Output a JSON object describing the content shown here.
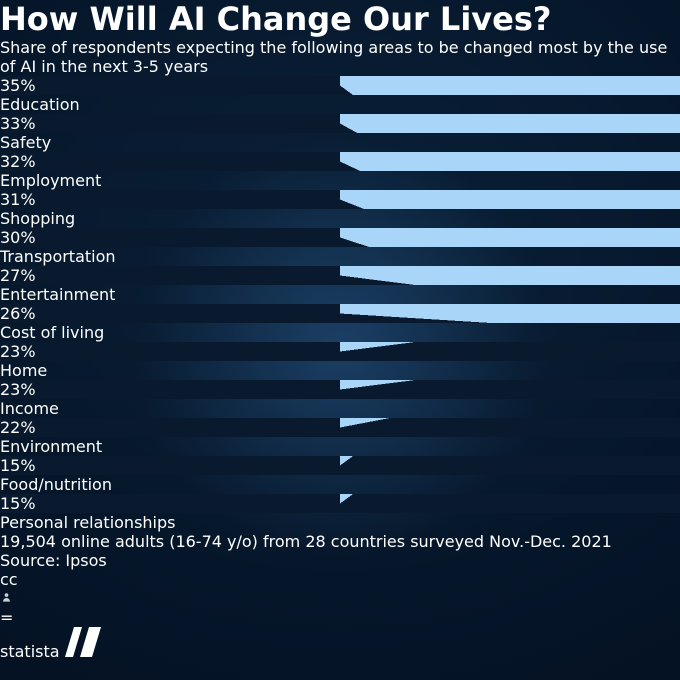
{
  "header": {
    "title": "How Will AI Change Our Lives?",
    "subtitle": "Share of respondents expecting the following areas to be changed most by the use of AI in the next 3-5 years"
  },
  "chart_data": {
    "type": "pie",
    "title": "How Will AI Change Our Lives?",
    "subtitle": "Share of respondents expecting the following areas to be changed most by the use of AI in the next 3-5 years",
    "unit": "%",
    "categories": [
      "Education",
      "Safety",
      "Employment",
      "Shopping",
      "Transportation",
      "Entertainment",
      "Cost of living",
      "Home",
      "Income",
      "Environment",
      "Food/nutrition",
      "Personal relationships"
    ],
    "values": [
      35,
      33,
      32,
      31,
      30,
      27,
      26,
      23,
      23,
      22,
      15,
      15
    ],
    "layout": {
      "grid": "4 columns x 3 rows",
      "slice_start": "12 o'clock",
      "slice_direction": "clockwise",
      "legend": "none",
      "value_labels": "inside each pie"
    }
  },
  "footer": {
    "note_line1": "19,504 online adults (16-74 y/o) from 28 countries surveyed Nov.-Dec. 2021",
    "note_line2": "Source: Ipsos",
    "license_icons": [
      "cc-icon",
      "attribution-person-icon",
      "equal-sign-icon"
    ]
  },
  "branding": {
    "logo_text": "statista"
  },
  "colors": {
    "background": "#051427",
    "pie_fill": "#a9d5f8",
    "pie_dark": "#0a1a2e",
    "glow": "#3a7cc4",
    "text": "#ffffff"
  }
}
